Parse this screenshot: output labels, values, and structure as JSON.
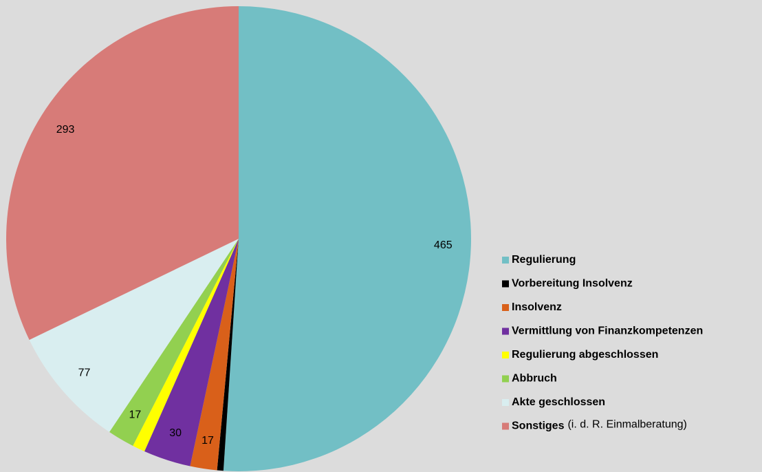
{
  "chart_data": {
    "type": "pie",
    "categories": [
      "Regulierung",
      "Vorbereitung Insolvenz",
      "Insolvenz",
      "Vermittlung von Finanzkompetenzen",
      "Regulierung abgeschlossen",
      "Abbruch",
      "Akte geschlossen",
      "Sonstiges"
    ],
    "values": [
      465,
      4,
      17,
      30,
      8,
      17,
      77,
      293
    ],
    "value_labels": [
      "465",
      null,
      "17",
      "30",
      null,
      "17",
      "77",
      "293"
    ],
    "colors": [
      "#72bfc5",
      "#000000",
      "#d9601a",
      "#7030a0",
      "#ffff00",
      "#92d050",
      "#d9eef0",
      "#d77b78"
    ],
    "legend_note": {
      "index": 7,
      "text": "(i. d. R. Einmalberatung)"
    },
    "legend": "right"
  }
}
